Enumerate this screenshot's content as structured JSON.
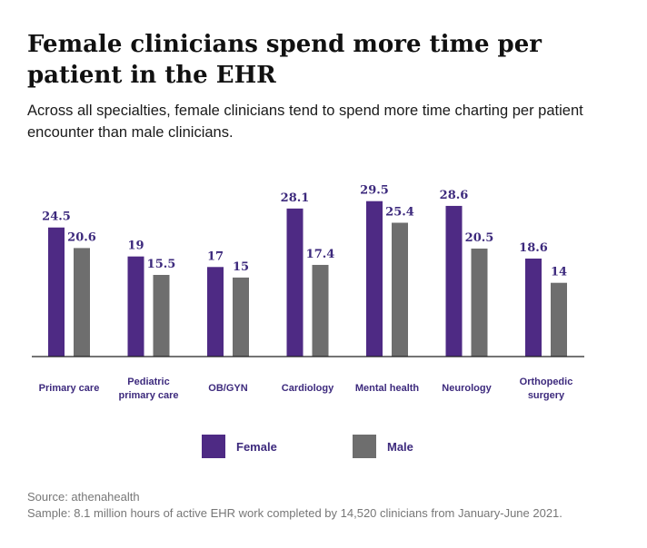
{
  "colors": {
    "female": "#4e2a84",
    "male": "#6e6e6e",
    "value_label": "#3d2a7d",
    "category_label": "#3d2a7d",
    "axis": "#222222"
  },
  "header": {
    "title_line1": "Female clinicians spend more time per",
    "title_line2": "patient in the EHR",
    "subtitle_line1": "Across all specialties, female clinicians tend to spend more time charting per patient",
    "subtitle_line2": "encounter than male clinicians."
  },
  "chart_data": {
    "type": "bar",
    "title": "Female clinicians spend more time per patient in the EHR",
    "xlabel": "",
    "ylabel": "",
    "ylim": [
      0,
      31
    ],
    "grid": false,
    "legend": "bottom",
    "categories": [
      [
        "Primary care"
      ],
      [
        "Pediatric",
        "primary care"
      ],
      [
        "OB/GYN"
      ],
      [
        "Cardiology"
      ],
      [
        "Mental health"
      ],
      [
        "Neurology"
      ],
      [
        "Orthopedic",
        "surgery"
      ]
    ],
    "series": [
      {
        "name": "Female",
        "values": [
          24.5,
          19,
          17,
          28.1,
          29.5,
          28.6,
          18.6
        ]
      },
      {
        "name": "Male",
        "values": [
          20.6,
          15.5,
          15,
          17.4,
          25.4,
          20.5,
          14
        ]
      }
    ]
  },
  "legend": {
    "female_label": "Female",
    "male_label": "Male"
  },
  "footer": {
    "source": "Source: athenahealth",
    "sample": "Sample:  8.1 million hours of active EHR work completed by 14,520 clinicians from January-June 2021."
  }
}
